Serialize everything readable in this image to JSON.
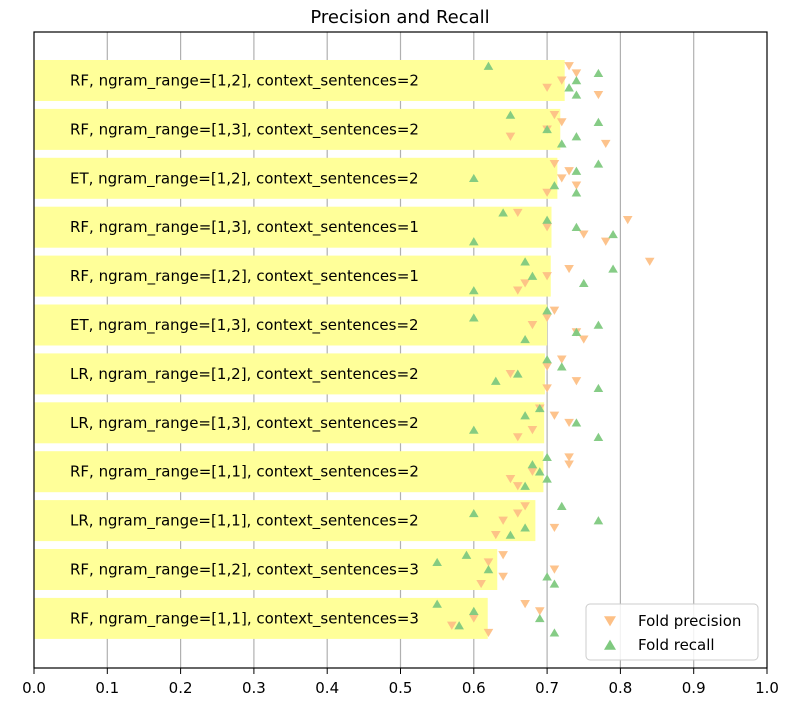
{
  "chart_data": {
    "type": "bar",
    "orientation": "horizontal",
    "title": "Precision and Recall",
    "xlabel": "",
    "ylabel": "",
    "xlim": [
      0.0,
      1.0
    ],
    "xticks": [
      "0.0",
      "0.1",
      "0.2",
      "0.3",
      "0.4",
      "0.5",
      "0.6",
      "0.7",
      "0.8",
      "0.9",
      "1.0"
    ],
    "grid": "vertical",
    "legend_position": "bottom-right",
    "colors": {
      "bar": "#ffff99",
      "precision": "#fdc086",
      "recall": "#7fc97f",
      "grid": "#b0b0b0"
    },
    "categories": [
      "RF, ngram_range=[1,2], context_sentences=2",
      "RF, ngram_range=[1,3], context_sentences=2",
      "ET, ngram_range=[1,2], context_sentences=2",
      "RF, ngram_range=[1,3], context_sentences=1",
      "RF, ngram_range=[1,2], context_sentences=1",
      "ET, ngram_range=[1,3], context_sentences=2",
      "LR, ngram_range=[1,2], context_sentences=2",
      "LR, ngram_range=[1,3], context_sentences=2",
      "RF, ngram_range=[1,1], context_sentences=2",
      "LR, ngram_range=[1,1], context_sentences=2",
      "RF, ngram_range=[1,2], context_sentences=3",
      "RF, ngram_range=[1,1], context_sentences=3"
    ],
    "values": [
      0.724,
      0.718,
      0.714,
      0.706,
      0.705,
      0.7,
      0.697,
      0.696,
      0.695,
      0.684,
      0.632,
      0.619
    ],
    "series": [
      {
        "name": "Fold precision",
        "marker": "triangle-down",
        "points": [
          [
            0.73,
            0.74,
            0.72,
            0.7,
            0.77
          ],
          [
            0.71,
            0.72,
            0.7,
            0.65,
            0.78
          ],
          [
            0.71,
            0.73,
            0.72,
            0.74,
            0.7
          ],
          [
            0.66,
            0.81,
            0.7,
            0.75,
            0.78
          ],
          [
            0.84,
            0.73,
            0.7,
            0.67,
            0.66
          ],
          [
            0.71,
            0.7,
            0.68,
            0.74,
            0.75
          ],
          [
            0.72,
            0.7,
            0.65,
            0.74,
            0.7
          ],
          [
            0.69,
            0.71,
            0.73,
            0.68,
            0.66
          ],
          [
            0.73,
            0.73,
            0.68,
            0.65,
            0.66
          ],
          [
            0.67,
            0.66,
            0.64,
            0.71,
            0.63
          ],
          [
            0.64,
            0.62,
            0.71,
            0.64,
            0.61
          ],
          [
            0.67,
            0.69,
            0.6,
            0.57,
            0.62
          ]
        ]
      },
      {
        "name": "Fold recall",
        "marker": "triangle-up",
        "points": [
          [
            0.62,
            0.77,
            0.74,
            0.73,
            0.74
          ],
          [
            0.65,
            0.77,
            0.7,
            0.74,
            0.72
          ],
          [
            0.77,
            0.74,
            0.6,
            0.71,
            0.74
          ],
          [
            0.64,
            0.7,
            0.74,
            0.79,
            0.6
          ],
          [
            0.67,
            0.79,
            0.68,
            0.75,
            0.6
          ],
          [
            0.7,
            0.6,
            0.77,
            0.74,
            0.67
          ],
          [
            0.7,
            0.72,
            0.66,
            0.63,
            0.77
          ],
          [
            0.69,
            0.67,
            0.74,
            0.6,
            0.77
          ],
          [
            0.7,
            0.68,
            0.69,
            0.7,
            0.67
          ],
          [
            0.72,
            0.6,
            0.77,
            0.67,
            0.65
          ],
          [
            0.59,
            0.55,
            0.62,
            0.7,
            0.71
          ],
          [
            0.55,
            0.6,
            0.69,
            0.58,
            0.71
          ]
        ]
      }
    ]
  }
}
